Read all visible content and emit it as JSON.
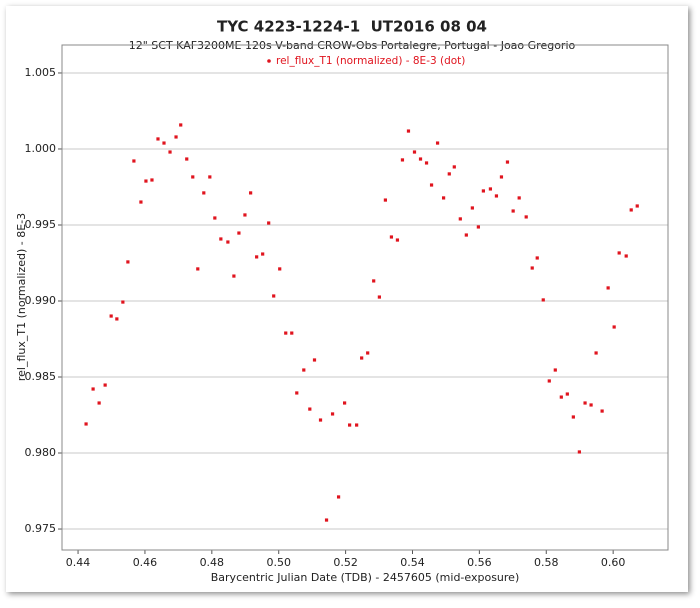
{
  "chart_data": {
    "type": "scatter",
    "title": "TYC 4223-1224-1  UT2016 08 04",
    "subtitle": "12\" SCT KAF3200ME 120s V-band CROW-Obs Portalegre, Portugal - Joao Gregorio",
    "x_label": "Barycentric Julian Date (TDB) - 2457605 (mid-exposure)",
    "y_label": "rel_flux_T1 (normalized) - 8E-3",
    "legend_position": "top",
    "grid": true,
    "xlim": [
      0.4352,
      0.6164
    ],
    "ylim": [
      0.97362,
      1.00684
    ],
    "xticks": [
      0.44,
      0.46,
      0.48,
      {
        "value": 0.5,
        "label": "0.50"
      },
      0.52,
      0.54,
      0.56,
      0.58,
      {
        "value": 0.6,
        "label": "0.60"
      }
    ],
    "yticks": [
      0.975,
      {
        "value": 0.98,
        "label": "0.980"
      },
      0.985,
      {
        "value": 0.99,
        "label": "0.990"
      },
      0.995,
      {
        "value": 1.0,
        "label": "1.000"
      },
      1.005
    ],
    "series": [
      {
        "name": "rel_flux_T1 (normalized) - 8E-3 (dot)",
        "color": "#e0141e",
        "x": [
          0.4424,
          0.4445,
          0.4463,
          0.4481,
          0.4499,
          0.4516,
          0.4534,
          0.4549,
          0.4567,
          0.4588,
          0.4603,
          0.4621,
          0.4639,
          0.4657,
          0.4675,
          0.4693,
          0.4707,
          0.4725,
          0.4743,
          0.4758,
          0.4776,
          0.4794,
          0.4809,
          0.4827,
          0.4848,
          0.4866,
          0.4881,
          0.4899,
          0.4916,
          0.4934,
          0.4952,
          0.497,
          0.4985,
          0.5003,
          0.5021,
          0.5039,
          0.5054,
          0.5075,
          0.5093,
          0.5107,
          0.5125,
          0.5143,
          0.5161,
          0.5179,
          0.5197,
          0.5212,
          0.5233,
          0.5248,
          0.5266,
          0.5284,
          0.5301,
          0.5319,
          0.5337,
          0.5355,
          0.537,
          0.5388,
          0.5406,
          0.5424,
          0.5442,
          0.5457,
          0.5475,
          0.5493,
          0.551,
          0.5525,
          0.5543,
          0.5561,
          0.5579,
          0.5597,
          0.5612,
          0.5633,
          0.5651,
          0.5666,
          0.5684,
          0.5701,
          0.5719,
          0.574,
          0.5758,
          0.5773,
          0.5791,
          0.5809,
          0.5827,
          0.5845,
          0.5863,
          0.5881,
          0.5899,
          0.5916,
          0.5934,
          0.5949,
          0.5967,
          0.5985,
          0.6003,
          0.6018,
          0.6039,
          0.6054,
          0.6072
        ],
        "values": [
          0.98191,
          0.98421,
          0.98329,
          0.98447,
          0.98901,
          0.98882,
          0.98993,
          0.99257,
          0.99921,
          0.99651,
          0.99789,
          0.99796,
          1.00066,
          1.00039,
          0.9998,
          1.00079,
          1.00158,
          0.99934,
          0.99816,
          0.99211,
          0.99711,
          0.99816,
          0.99546,
          0.99408,
          0.99388,
          0.99164,
          0.99447,
          0.99566,
          0.99711,
          0.9929,
          0.99309,
          0.99513,
          0.99033,
          0.99211,
          0.98789,
          0.98789,
          0.98395,
          0.98546,
          0.98289,
          0.98612,
          0.98217,
          0.97559,
          0.98257,
          0.97711,
          0.98329,
          0.98184,
          0.98184,
          0.98625,
          0.98658,
          0.99132,
          0.99026,
          0.99664,
          0.99421,
          0.99401,
          0.99928,
          1.00118,
          0.9998,
          0.99934,
          0.99908,
          0.99763,
          1.00039,
          0.99678,
          0.99836,
          0.99882,
          0.9954,
          0.99434,
          0.99612,
          0.99487,
          0.99724,
          0.99737,
          0.99691,
          0.99816,
          0.99914,
          0.99592,
          0.99678,
          0.99553,
          0.99217,
          0.99283,
          0.99007,
          0.98474,
          0.98546,
          0.98368,
          0.98388,
          0.98237,
          0.98007,
          0.98329,
          0.98316,
          0.98658,
          0.98276,
          0.99086,
          0.98829,
          0.99316,
          0.99296,
          0.99599,
          0.99625
        ]
      }
    ]
  }
}
